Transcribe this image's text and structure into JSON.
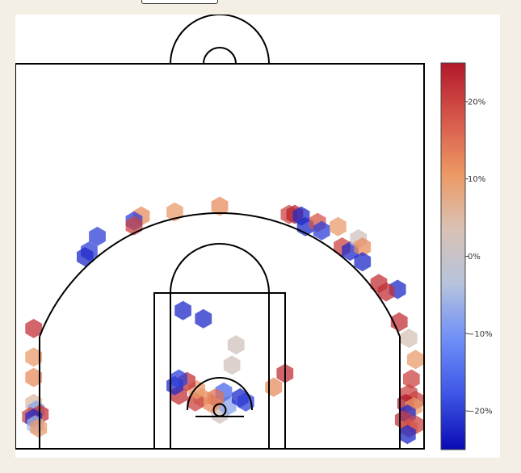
{
  "colors": {
    "background": "#f3efe4",
    "panel": "#ffffff",
    "court_lines": "#000000",
    "scale": [
      "#0a0ab3",
      "#3d56e6",
      "#6f8ff7",
      "#b6c3dd",
      "#d9c2b4",
      "#ec9863",
      "#d6574a",
      "#b2182b"
    ]
  },
  "chart_data": {
    "type": "hexbin",
    "description_hidden": false,
    "colorbar": {
      "min": -25,
      "max": 25,
      "ticks": [
        {
          "value": 20,
          "label": "20%"
        },
        {
          "value": 10,
          "label": "10%"
        },
        {
          "value": 0,
          "label": "0%"
        },
        {
          "value": -10,
          "label": "−10%"
        },
        {
          "value": -20,
          "label": "−20%"
        }
      ]
    },
    "axes": {
      "xlim": [
        -250,
        250
      ],
      "ylim": [
        -47.5,
        422.5
      ],
      "grid": false
    },
    "points": [
      {
        "x": 0,
        "y": -5,
        "v": 2
      },
      {
        "x": 10,
        "y": 5,
        "v": -8
      },
      {
        "x": -10,
        "y": 8,
        "v": 12
      },
      {
        "x": 25,
        "y": 15,
        "v": -22
      },
      {
        "x": 32,
        "y": 10,
        "v": -20
      },
      {
        "x": 5,
        "y": 22,
        "v": -16
      },
      {
        "x": -5,
        "y": 15,
        "v": 15
      },
      {
        "x": -22,
        "y": 15,
        "v": 12
      },
      {
        "x": -30,
        "y": 10,
        "v": 20
      },
      {
        "x": -28,
        "y": 25,
        "v": 10
      },
      {
        "x": -40,
        "y": 35,
        "v": 22
      },
      {
        "x": -50,
        "y": 18,
        "v": 22
      },
      {
        "x": -55,
        "y": 30,
        "v": -22
      },
      {
        "x": -50,
        "y": 38,
        "v": -20
      },
      {
        "x": 15,
        "y": 55,
        "v": 2
      },
      {
        "x": 20,
        "y": 80,
        "v": 2
      },
      {
        "x": 80,
        "y": 45,
        "v": 22
      },
      {
        "x": 66,
        "y": 28,
        "v": 12
      },
      {
        "x": -45,
        "y": 122,
        "v": -22
      },
      {
        "x": -20,
        "y": 112,
        "v": -22
      },
      {
        "x": 0,
        "y": 250,
        "v": 12
      },
      {
        "x": -55,
        "y": 243,
        "v": 10
      },
      {
        "x": -96,
        "y": 238,
        "v": 12
      },
      {
        "x": -105,
        "y": 232,
        "v": -20
      },
      {
        "x": -105,
        "y": 226,
        "v": 20
      },
      {
        "x": -150,
        "y": 213,
        "v": -20
      },
      {
        "x": -160,
        "y": 195,
        "v": -20
      },
      {
        "x": -165,
        "y": 188,
        "v": -22
      },
      {
        "x": 85,
        "y": 240,
        "v": 20
      },
      {
        "x": 92,
        "y": 240,
        "v": 24
      },
      {
        "x": 100,
        "y": 238,
        "v": -22
      },
      {
        "x": 105,
        "y": 225,
        "v": -22
      },
      {
        "x": 120,
        "y": 230,
        "v": 18
      },
      {
        "x": 125,
        "y": 220,
        "v": -20
      },
      {
        "x": 145,
        "y": 225,
        "v": 10
      },
      {
        "x": 150,
        "y": 200,
        "v": 20
      },
      {
        "x": 160,
        "y": 195,
        "v": -22
      },
      {
        "x": 170,
        "y": 210,
        "v": 2
      },
      {
        "x": 175,
        "y": 200,
        "v": 12
      },
      {
        "x": 175,
        "y": 182,
        "v": -22
      },
      {
        "x": 195,
        "y": 155,
        "v": 22
      },
      {
        "x": 218,
        "y": 148,
        "v": -22
      },
      {
        "x": 204,
        "y": 145,
        "v": 22
      },
      {
        "x": 220,
        "y": 108,
        "v": 22
      },
      {
        "x": 232,
        "y": 88,
        "v": 3
      },
      {
        "x": 240,
        "y": 62,
        "v": 10
      },
      {
        "x": 235,
        "y": 38,
        "v": 20
      },
      {
        "x": 232,
        "y": 20,
        "v": 20
      },
      {
        "x": 240,
        "y": 12,
        "v": 20
      },
      {
        "x": 228,
        "y": 8,
        "v": 25
      },
      {
        "x": 238,
        "y": 4,
        "v": 10
      },
      {
        "x": 230,
        "y": -5,
        "v": -22
      },
      {
        "x": 225,
        "y": -12,
        "v": 22
      },
      {
        "x": 240,
        "y": -18,
        "v": 20
      },
      {
        "x": 232,
        "y": -22,
        "v": 18
      },
      {
        "x": 230,
        "y": -30,
        "v": -22
      },
      {
        "x": -228,
        "y": 100,
        "v": 22
      },
      {
        "x": -228,
        "y": 65,
        "v": 10
      },
      {
        "x": -228,
        "y": 40,
        "v": 12
      },
      {
        "x": -228,
        "y": 8,
        "v": 5
      },
      {
        "x": -225,
        "y": 0,
        "v": -8
      },
      {
        "x": -220,
        "y": -5,
        "v": 22
      },
      {
        "x": -232,
        "y": -8,
        "v": 20
      },
      {
        "x": -228,
        "y": -10,
        "v": -22
      },
      {
        "x": -226,
        "y": -18,
        "v": -5
      },
      {
        "x": -222,
        "y": -22,
        "v": 10
      }
    ]
  }
}
